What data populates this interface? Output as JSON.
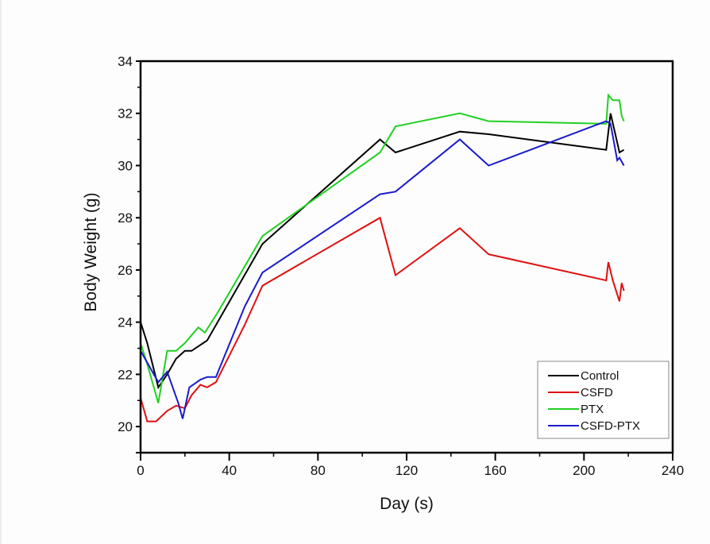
{
  "chart_data": {
    "type": "line",
    "title": "",
    "xlabel": "Day (s)",
    "ylabel": "Body Weight (g)",
    "xlim": [
      0,
      240
    ],
    "ylim": [
      19,
      34
    ],
    "x_ticks": [
      0,
      40,
      80,
      120,
      160,
      200,
      240
    ],
    "y_ticks": [
      20,
      22,
      24,
      26,
      28,
      30,
      32,
      34
    ],
    "x_tick_labels": [
      "0",
      "40",
      "80",
      "120",
      "160",
      "200",
      "240"
    ],
    "y_tick_labels": [
      "20",
      "22",
      "24",
      "26",
      "28",
      "30",
      "32",
      "34"
    ],
    "grid": false,
    "legend_position": "bottom-right",
    "series": [
      {
        "name": "Control",
        "color": "#000000",
        "points": [
          [
            0,
            24.0
          ],
          [
            3,
            23.2
          ],
          [
            8,
            21.5
          ],
          [
            12,
            22.0
          ],
          [
            16,
            22.6
          ],
          [
            20,
            22.9
          ],
          [
            23,
            22.9
          ],
          [
            30,
            23.3
          ],
          [
            55,
            27.0
          ],
          [
            108,
            31.0
          ],
          [
            115,
            30.5
          ],
          [
            144,
            31.3
          ],
          [
            157,
            31.2
          ],
          [
            210,
            30.6
          ],
          [
            212,
            32.0
          ],
          [
            216,
            30.5
          ],
          [
            218,
            30.6
          ]
        ]
      },
      {
        "name": "CSFD",
        "color": "#e01010",
        "points": [
          [
            0,
            21.1
          ],
          [
            3,
            20.2
          ],
          [
            7,
            20.2
          ],
          [
            12,
            20.6
          ],
          [
            16,
            20.8
          ],
          [
            20,
            20.7
          ],
          [
            23,
            21.2
          ],
          [
            27,
            21.6
          ],
          [
            30,
            21.5
          ],
          [
            34,
            21.7
          ],
          [
            47,
            23.9
          ],
          [
            55,
            25.4
          ],
          [
            108,
            28.0
          ],
          [
            115,
            25.8
          ],
          [
            144,
            27.6
          ],
          [
            157,
            26.6
          ],
          [
            210,
            25.6
          ],
          [
            211,
            26.3
          ],
          [
            213,
            25.6
          ],
          [
            216,
            24.8
          ],
          [
            217,
            25.5
          ],
          [
            218,
            25.2
          ]
        ]
      },
      {
        "name": "PTX",
        "color": "#22d022",
        "points": [
          [
            0,
            23.2
          ],
          [
            3,
            22.4
          ],
          [
            8,
            20.9
          ],
          [
            12,
            22.9
          ],
          [
            16,
            22.9
          ],
          [
            20,
            23.2
          ],
          [
            26,
            23.8
          ],
          [
            29,
            23.6
          ],
          [
            35,
            24.4
          ],
          [
            55,
            27.3
          ],
          [
            108,
            30.5
          ],
          [
            115,
            31.5
          ],
          [
            144,
            32.0
          ],
          [
            157,
            31.7
          ],
          [
            210,
            31.6
          ],
          [
            211,
            32.7
          ],
          [
            213,
            32.5
          ],
          [
            216,
            32.5
          ],
          [
            217,
            31.9
          ],
          [
            218,
            31.7
          ]
        ]
      },
      {
        "name": "CSFD-PTX",
        "color": "#1a1acc",
        "points": [
          [
            0,
            22.9
          ],
          [
            4,
            22.3
          ],
          [
            8,
            21.7
          ],
          [
            12,
            22.1
          ],
          [
            17,
            20.9
          ],
          [
            19,
            20.3
          ],
          [
            22,
            21.5
          ],
          [
            27,
            21.8
          ],
          [
            30,
            21.9
          ],
          [
            34,
            21.9
          ],
          [
            47,
            24.6
          ],
          [
            55,
            25.9
          ],
          [
            108,
            28.9
          ],
          [
            115,
            29.0
          ],
          [
            144,
            31.0
          ],
          [
            157,
            30.0
          ],
          [
            210,
            31.7
          ],
          [
            212,
            31.6
          ],
          [
            215,
            30.2
          ],
          [
            216,
            30.3
          ],
          [
            218,
            30.0
          ]
        ]
      }
    ]
  }
}
